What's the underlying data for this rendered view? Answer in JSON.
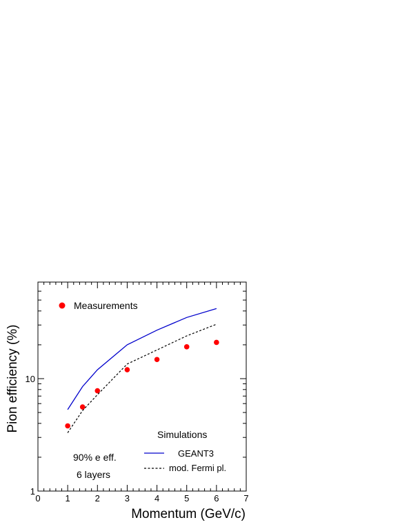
{
  "chart_data": {
    "type": "line",
    "title": "",
    "xlabel": "Momentum (GeV/c)",
    "ylabel": "Pion efficiency (%)",
    "xlim": [
      0,
      7
    ],
    "ylim": [
      1,
      60
    ],
    "yscale": "log",
    "x_ticks": [
      "0",
      "1",
      "2",
      "3",
      "4",
      "5",
      "6",
      "7"
    ],
    "y_ticks": [
      {
        "value": 1,
        "label": "1"
      },
      {
        "value": 10,
        "label": "10"
      }
    ],
    "grid": false,
    "series": [
      {
        "name": "Measurements",
        "style": "markers",
        "color": "#ff0000",
        "x": [
          1.0,
          1.5,
          2.0,
          3.0,
          4.0,
          5.0,
          6.0
        ],
        "y": [
          3.8,
          5.6,
          7.8,
          12.0,
          14.8,
          19.2,
          21.0
        ]
      },
      {
        "name": "GEANT3",
        "style": "solid",
        "color": "#0000cc",
        "x": [
          1.0,
          1.5,
          2.0,
          3.0,
          4.0,
          5.0,
          6.0
        ],
        "y": [
          5.3,
          8.5,
          12.0,
          20.0,
          27.0,
          35.0,
          42.0
        ]
      },
      {
        "name": "mod. Fermi pl.",
        "style": "dashed",
        "color": "#000000",
        "x": [
          1.0,
          1.5,
          2.0,
          3.0,
          4.0,
          5.0,
          6.0
        ],
        "y": [
          3.3,
          5.2,
          7.2,
          13.5,
          18.0,
          24.0,
          30.5
        ]
      }
    ],
    "legend": {
      "measurements_label": "Measurements",
      "simulations_title": "Simulations",
      "geant_label": "GEANT3",
      "fermi_label": "mod. Fermi pl."
    },
    "annotations": [
      "90% e eff.",
      "6 layers"
    ]
  }
}
